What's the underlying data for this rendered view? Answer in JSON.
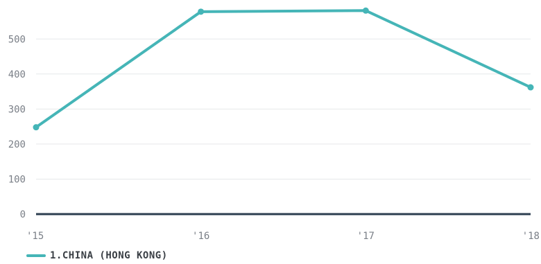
{
  "chart_data": {
    "type": "line",
    "title": "",
    "xlabel": "",
    "ylabel": "",
    "categories": [
      "'15",
      "'16",
      "'17",
      "'18"
    ],
    "y_ticks": [
      "0",
      "100",
      "200",
      "300",
      "400",
      "500"
    ],
    "ylim": [
      0,
      590
    ],
    "grid": true,
    "legend_position": "bottom-left",
    "series": [
      {
        "name": "1.CHINA (HONG KONG)",
        "color": "#45b5b7",
        "values": [
          248,
          578,
          581,
          362
        ]
      }
    ]
  }
}
